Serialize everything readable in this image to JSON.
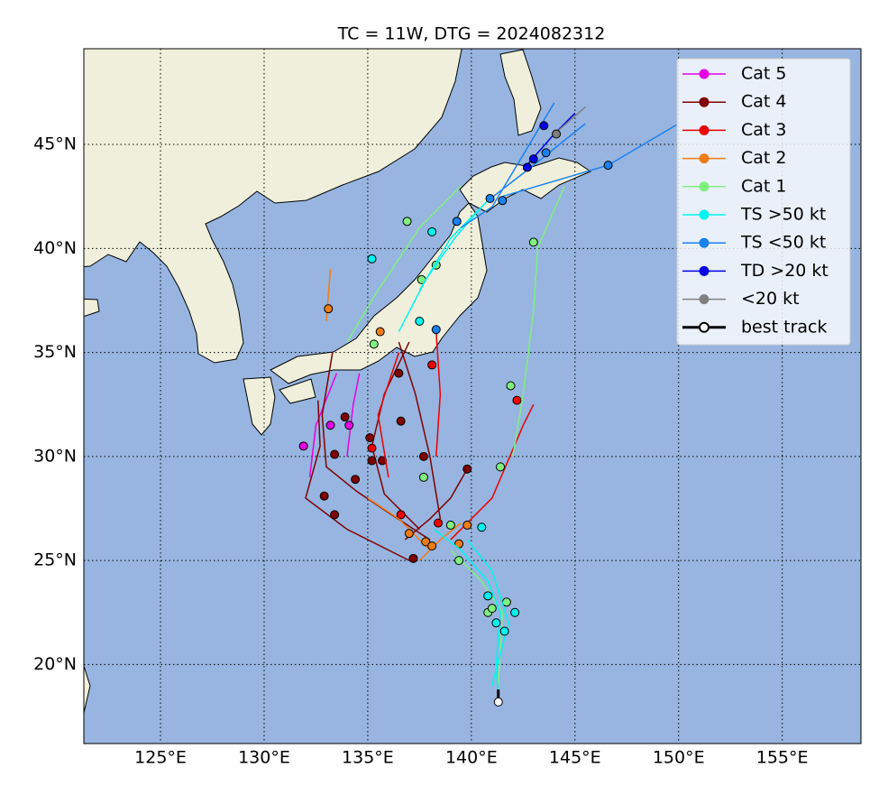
{
  "title": "TC = 11W, DTG = 2024082312",
  "map": {
    "xlim": [
      121.3,
      158.8
    ],
    "ylim": [
      16.2,
      49.6
    ],
    "xticks": [
      {
        "value": 125,
        "label": "125°E"
      },
      {
        "value": 130,
        "label": "130°E"
      },
      {
        "value": 135,
        "label": "135°E"
      },
      {
        "value": 140,
        "label": "140°E"
      },
      {
        "value": 145,
        "label": "145°E"
      },
      {
        "value": 150,
        "label": "150°E"
      },
      {
        "value": 155,
        "label": "155°E"
      }
    ],
    "yticks": [
      {
        "value": 20,
        "label": "20°N"
      },
      {
        "value": 25,
        "label": "25°N"
      },
      {
        "value": 30,
        "label": "30°N"
      },
      {
        "value": 35,
        "label": "35°N"
      },
      {
        "value": 40,
        "label": "40°N"
      },
      {
        "value": 45,
        "label": "45°N"
      }
    ],
    "grid": true,
    "ocean": "#97b5e0",
    "legend": [
      {
        "label": "Cat 5",
        "color": "#e600e6",
        "segments": [
          {
            "lon": [
              132.2,
              132.5,
              133.5
            ],
            "lat": [
              29,
              31.5,
              34
            ]
          },
          {
            "lon": [
              134,
              134.3,
              134.6
            ],
            "lat": [
              30,
              32.5,
              34
            ]
          }
        ],
        "points": {
          "lon": [
            131.9,
            133.2,
            134.1
          ],
          "lat": [
            30.5,
            31.5,
            31.5
          ]
        }
      },
      {
        "label": "Cat 4",
        "color": "#800000",
        "segments": [
          {
            "lon": [
              138,
              136,
              134.5,
              133,
              132.8,
              133.3
            ],
            "lat": [
              26,
              27.3,
              28.3,
              29.5,
              32,
              35
            ]
          },
          {
            "lon": [
              137.5,
              135.8,
              135.2,
              135.8,
              137
            ],
            "lat": [
              26.5,
              28.2,
              30.5,
              33,
              35.5
            ]
          },
          {
            "lon": [
              138.5,
              138,
              137.3,
              136.5
            ],
            "lat": [
              27,
              30,
              33,
              35.5
            ]
          },
          {
            "lon": [
              137,
              134,
              132,
              132.7,
              132.6
            ],
            "lat": [
              25,
              26.5,
              28,
              30.5,
              32.7
            ]
          },
          {
            "lon": [
              139.8,
              139,
              138,
              136.8
            ],
            "lat": [
              29.4,
              28,
              27,
              26
            ]
          }
        ],
        "points": {
          "lon": [
            133.4,
            132.9,
            133.4,
            135.2,
            135.7,
            136.6,
            137.2,
            137.7,
            139.8,
            134.4,
            133.9,
            135.1,
            136.5
          ],
          "lat": [
            27.2,
            28.1,
            30.1,
            29.8,
            29.8,
            31.7,
            25.1,
            30,
            29.4,
            28.9,
            31.9,
            30.9,
            34
          ]
        }
      },
      {
        "label": "Cat 3",
        "color": "#ee0000",
        "segments": [
          {
            "lon": [
              139,
              141,
              142.5,
              143
            ],
            "lat": [
              26,
              28,
              31.5,
              32.5
            ]
          },
          {
            "lon": [
              136,
              135.5,
              136.5
            ],
            "lat": [
              29,
              32,
              35
            ]
          },
          {
            "lon": [
              138.3,
              138.5,
              138.3
            ],
            "lat": [
              30,
              33,
              36
            ]
          }
        ],
        "points": {
          "lon": [
            142.2,
            138.1,
            136.6,
            138.4,
            135.2
          ],
          "lat": [
            32.7,
            34.4,
            27.2,
            26.8,
            30.4
          ]
        }
      },
      {
        "label": "Cat 2",
        "color": "#f07c16",
        "segments": [
          {
            "lon": [
              138,
              136.5,
              135
            ],
            "lat": [
              25.5,
              27,
              28
            ]
          },
          {
            "lon": [
              133,
              133.2
            ],
            "lat": [
              36.5,
              39
            ]
          },
          {
            "lon": [
              139.5,
              138.5,
              137.5
            ],
            "lat": [
              26.8,
              26,
              25
            ]
          }
        ],
        "points": {
          "lon": [
            133.1,
            137,
            137.8,
            138.1,
            139.4,
            139.8,
            135.6
          ],
          "lat": [
            37.1,
            26.3,
            25.9,
            25.7,
            25.8,
            26.7,
            36
          ]
        }
      },
      {
        "label": "Cat 1",
        "color": "#80f080",
        "segments": [
          {
            "lon": [
              141.3,
              141.5,
              140.5,
              139
            ],
            "lat": [
              19,
              22.5,
              24,
              25.5
            ]
          },
          {
            "lon": [
              142,
              142.5,
              143,
              143.2,
              144.5
            ],
            "lat": [
              30,
              33,
              37,
              40,
              43
            ]
          },
          {
            "lon": [
              134,
              135.5,
              137.5,
              139.5
            ],
            "lat": [
              35.5,
              38,
              41,
              43
            ]
          }
        ],
        "points": {
          "lon": [
            136.9,
            137.6,
            138.3,
            141.9,
            143,
            141.4,
            137.7,
            140.8,
            139.4,
            141.7,
            141,
            139,
            135.3
          ],
          "lat": [
            41.3,
            38.5,
            39.2,
            33.4,
            40.3,
            29.5,
            29,
            22.5,
            25,
            23,
            22.7,
            26.7,
            35.4
          ]
        }
      },
      {
        "label": "TS >50 kt",
        "color": "#00f5f0",
        "segments": [
          {
            "lon": [
              141.3,
              141.2,
              141.4,
              140.8,
              139.5,
              138.2
            ],
            "lat": [
              18.5,
              20,
              22.5,
              24,
              25.5,
              26.5
            ]
          },
          {
            "lon": [
              137.5,
              139,
              140.8
            ],
            "lat": [
              38,
              40.5,
              42.3
            ]
          },
          {
            "lon": [
              141,
              141.8,
              141,
              139.8
            ],
            "lat": [
              19,
              22,
              24.5,
              26
            ]
          },
          {
            "lon": [
              136.5,
              137.8,
              139.2,
              140.5
            ],
            "lat": [
              36,
              38.5,
              40.5,
              42
            ]
          }
        ],
        "points": {
          "lon": [
            141.2,
            141.6,
            140.8,
            142.1,
            140.5,
            135.2,
            137.5,
            138.1
          ],
          "lat": [
            22,
            21.6,
            23.3,
            22.5,
            26.6,
            39.5,
            36.5,
            40.8
          ]
        }
      },
      {
        "label": "TS <50 kt",
        "color": "#1a80f0",
        "segments": [
          {
            "lon": [
              140.8,
              143,
              145.5
            ],
            "lat": [
              42.3,
              44,
              46
            ]
          },
          {
            "lon": [
              141.5,
              146.6,
              150
            ],
            "lat": [
              42.5,
              44,
              46
            ]
          },
          {
            "lon": [
              139.5,
              141,
              144
            ],
            "lat": [
              41,
              42,
              47
            ]
          }
        ],
        "points": {
          "lon": [
            139.3,
            140.9,
            141.5,
            146.6,
            143.6,
            138.3
          ],
          "lat": [
            41.3,
            42.4,
            42.3,
            44,
            44.6,
            36.1
          ]
        }
      },
      {
        "label": "TD >20 kt",
        "color": "#0000e6",
        "segments": [
          {
            "lon": [
              142.5,
              144,
              145
            ],
            "lat": [
              43.8,
              45.5,
              46.5
            ]
          }
        ],
        "points": {
          "lon": [
            142.7,
            143,
            143.5
          ],
          "lat": [
            43.9,
            44.3,
            45.9
          ]
        }
      },
      {
        "label": "<20 kt",
        "color": "#808080",
        "segments": [
          {
            "lon": [
              144,
              145.5
            ],
            "lat": [
              45.5,
              46.8
            ]
          }
        ],
        "points": {
          "lon": [
            144.1
          ],
          "lat": [
            45.5
          ]
        }
      },
      {
        "label": "best track",
        "color": "#000000",
        "segments": [
          {
            "lon": [
              141.3,
              141.3
            ],
            "lat": [
              18.2,
              18.8
            ]
          }
        ],
        "points": {
          "lon": [
            141.3
          ],
          "lat": [
            18.2
          ]
        }
      }
    ]
  }
}
